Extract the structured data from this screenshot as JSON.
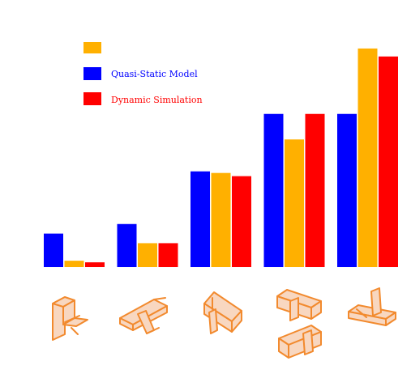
{
  "chart_data": {
    "type": "bar",
    "categories": [
      "",
      "",
      "",
      "",
      ""
    ],
    "series": [
      {
        "name": "",
        "color": "#ffb000",
        "values": [
          4,
          15,
          59,
          80,
          137
        ]
      },
      {
        "name": "Quasi-Static Model",
        "color": "#0000ff",
        "values": [
          21,
          27,
          60,
          96,
          96
        ]
      },
      {
        "name": "Dynamic Simulation",
        "color": "#ff0000",
        "values": [
          3,
          15,
          57,
          96,
          132
        ]
      }
    ],
    "bar_order": [
      "Quasi-Static Model",
      "",
      "Dynamic Simulation"
    ],
    "title": "",
    "xlabel": "",
    "ylabel": "",
    "ylim": [
      0,
      140
    ],
    "grid": false,
    "legend_position": "top-left",
    "category_icons": [
      "L-bracket-shape-icon",
      "twisted-bracket-shape-icon",
      "angled-bracket-shape-icon",
      "double-bracket-shape-icon",
      "flat-bracket-shape-icon"
    ]
  }
}
